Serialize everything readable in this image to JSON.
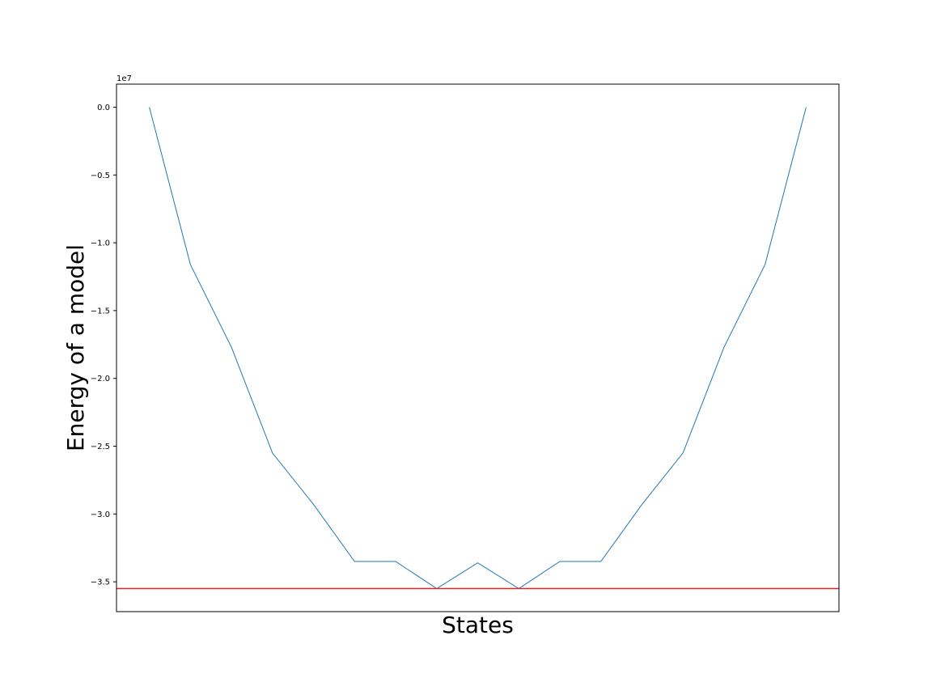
{
  "chart_data": {
    "type": "line",
    "title": "",
    "xlabel": "States",
    "ylabel": "Energy of a model",
    "y_offset_text": "1e7",
    "y_scale": 10000000,
    "ylim": [
      -3.72,
      0.17
    ],
    "xlim": [
      -0.05,
      1.05
    ],
    "x_ticks": [],
    "y_ticks": [
      {
        "value": 0.0,
        "label": "0.0"
      },
      {
        "value": -0.5,
        "label": "−0.5"
      },
      {
        "value": -1.0,
        "label": "−1.0"
      },
      {
        "value": -1.5,
        "label": "−1.5"
      },
      {
        "value": -2.0,
        "label": "−2.0"
      },
      {
        "value": -2.5,
        "label": "−2.5"
      },
      {
        "value": -3.0,
        "label": "−3.0"
      },
      {
        "value": -3.5,
        "label": "−3.5"
      }
    ],
    "grid": false,
    "legend": "none",
    "series": [
      {
        "color": "#1f77b4",
        "x": [
          0.0,
          0.0625,
          0.0625,
          0.125,
          0.125,
          0.1875,
          0.1875,
          0.25,
          0.25,
          0.3125,
          0.3125,
          0.375,
          0.375,
          0.4375,
          0.4375,
          0.5,
          0.5,
          0.5625,
          0.5625,
          0.625,
          0.625,
          0.6875,
          0.6875,
          0.75,
          0.75,
          0.8125,
          0.8125,
          0.875,
          0.875,
          0.9375,
          0.9375,
          1.0
        ],
        "y": [
          0.0,
          -1.16,
          -1.16,
          -1.77,
          -1.77,
          -2.55,
          -2.55,
          -2.93,
          -2.93,
          -3.35,
          -3.35,
          -3.35,
          -3.35,
          -3.55,
          -3.55,
          -3.36,
          -3.36,
          -3.55,
          -3.55,
          -3.35,
          -3.35,
          -3.35,
          -3.35,
          -2.93,
          -2.93,
          -2.55,
          -2.55,
          -1.77,
          -1.77,
          -1.16,
          -1.16,
          0.0
        ]
      },
      {
        "color": "#d62728",
        "x": [
          -0.05,
          1.05
        ],
        "y": [
          -3.55,
          -3.55
        ]
      }
    ]
  }
}
